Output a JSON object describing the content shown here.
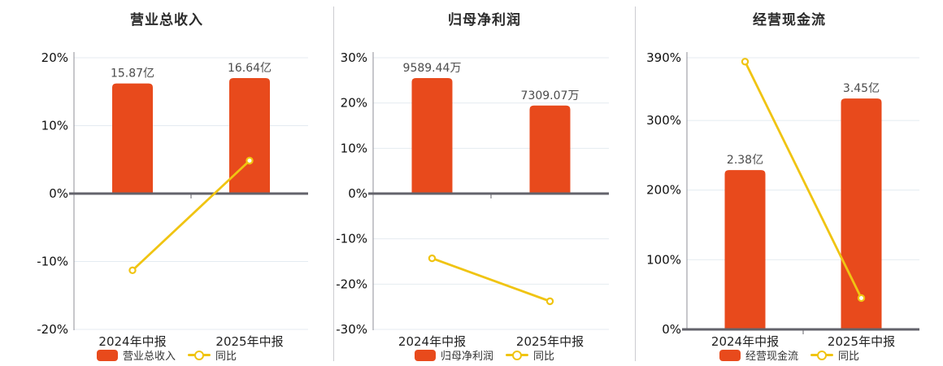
{
  "colors": {
    "background": "#ffffff",
    "bar": "#e84a1c",
    "line": "#f0c412",
    "grid": "#e4ebf1",
    "zero_axis": "#63636b",
    "axis": "#8f8f97",
    "divider": "#ccccd1",
    "title_text": "#2b2b2b",
    "tick_text": "#111111",
    "category_text": "#222222",
    "value_label_text": "#4c4c4c",
    "legend_text": "#333333",
    "marker_fill": "#ffffff"
  },
  "chart_data": [
    {
      "type": "bar+line",
      "title": "营业总收入",
      "categories": [
        "2024年中报",
        "2025年中报"
      ],
      "bar_series": {
        "name": "营业总收入",
        "unit": "亿",
        "values": [
          15.87,
          16.64
        ],
        "labels": [
          "15.87亿",
          "16.64亿"
        ]
      },
      "line_series": {
        "name": "同比",
        "unit": "%",
        "values": [
          -11.3,
          4.85
        ]
      },
      "y_axis": {
        "min": -20,
        "max": 20,
        "tick_values": [
          20,
          10,
          0,
          -10,
          -20
        ],
        "tick_labels": [
          "20%",
          "10%",
          "0%",
          "-10%",
          "-20%"
        ]
      },
      "legend_position": "bottom",
      "grid": true
    },
    {
      "type": "bar+line",
      "title": "归母净利润",
      "categories": [
        "2024年中报",
        "2025年中报"
      ],
      "bar_series": {
        "name": "归母净利润",
        "unit": "万",
        "values": [
          9589.44,
          7309.07
        ],
        "labels": [
          "9589.44万",
          "7309.07万"
        ]
      },
      "line_series": {
        "name": "同比",
        "unit": "%",
        "values": [
          -14.3,
          -23.78
        ]
      },
      "y_axis": {
        "min": -30,
        "max": 30,
        "tick_values": [
          30,
          20,
          10,
          0,
          -10,
          -20,
          -30
        ],
        "tick_labels": [
          "30%",
          "20%",
          "10%",
          "0%",
          "-10%",
          "-20%",
          "-30%"
        ]
      },
      "legend_position": "bottom",
      "grid": true
    },
    {
      "type": "bar+line",
      "title": "经营现金流",
      "categories": [
        "2024年中报",
        "2025年中报"
      ],
      "bar_series": {
        "name": "经营现金流",
        "unit": "亿",
        "values": [
          2.38,
          3.45
        ],
        "labels": [
          "2.38亿",
          "3.45亿"
        ]
      },
      "line_series": {
        "name": "同比",
        "unit": "%",
        "values": [
          384.4,
          45.0
        ]
      },
      "y_axis": {
        "min": 0,
        "max": 390,
        "tick_values": [
          390,
          300,
          200,
          100,
          0
        ],
        "tick_labels": [
          "390%",
          "300%",
          "200%",
          "100%",
          "0%"
        ]
      },
      "legend_position": "bottom",
      "grid": true
    }
  ]
}
